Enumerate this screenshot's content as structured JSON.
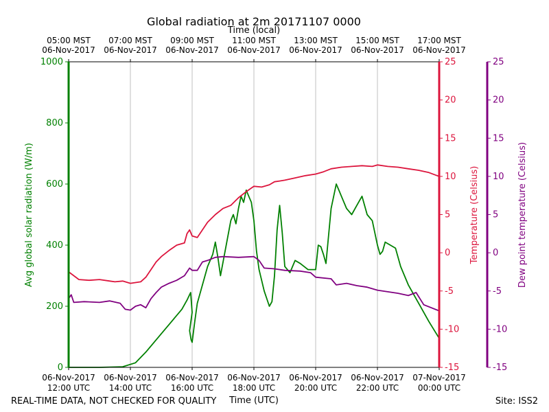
{
  "chart_data": {
    "type": "line",
    "title": "Global radiation at 2m 20171107 0000",
    "top_axis_label": "Time (local)",
    "top_ticks": [
      {
        "l1": "05:00 MST",
        "l2": "06-Nov-2017"
      },
      {
        "l1": "07:00 MST",
        "l2": "06-Nov-2017"
      },
      {
        "l1": "09:00 MST",
        "l2": "06-Nov-2017"
      },
      {
        "l1": "11:00 MST",
        "l2": "06-Nov-2017"
      },
      {
        "l1": "13:00 MST",
        "l2": "06-Nov-2017"
      },
      {
        "l1": "15:00 MST",
        "l2": "06-Nov-2017"
      },
      {
        "l1": "17:00 MST",
        "l2": "06-Nov-2017"
      }
    ],
    "xlabel": "Time (UTC)",
    "x_ticks": [
      {
        "l1": "06-Nov-2017",
        "l2": "12:00 UTC"
      },
      {
        "l1": "06-Nov-2017",
        "l2": "14:00 UTC"
      },
      {
        "l1": "06-Nov-2017",
        "l2": "16:00 UTC"
      },
      {
        "l1": "06-Nov-2017",
        "l2": "18:00 UTC"
      },
      {
        "l1": "06-Nov-2017",
        "l2": "20:00 UTC"
      },
      {
        "l1": "06-Nov-2017",
        "l2": "22:00 UTC"
      },
      {
        "l1": "07-Nov-2017",
        "l2": "00:00 UTC"
      }
    ],
    "xlim": [
      "06-Nov-2017 12:00 UTC",
      "07-Nov-2017 00:00 UTC"
    ],
    "grid": "vertical",
    "y_axes": [
      {
        "label": "Avg global solar radiation (W/m)",
        "color": "#008000",
        "ylim": [
          0,
          1000
        ],
        "ticks": [
          0,
          200,
          400,
          600,
          800,
          1000
        ]
      },
      {
        "label": "Temperature (Celsius)",
        "color": "#dc143c",
        "ylim": [
          -15,
          25
        ],
        "ticks": [
          -15,
          -10,
          -5,
          0,
          5,
          10,
          15,
          20,
          25
        ]
      },
      {
        "label": "Dew point temperature (Celsius)",
        "color": "#800080",
        "ylim": [
          -15,
          25
        ],
        "ticks": [
          -15,
          -10,
          -5,
          0,
          5,
          10,
          15,
          20,
          25
        ]
      }
    ],
    "series": [
      {
        "axis": 0,
        "color": "#008000",
        "points": [
          [
            "12:00",
            0
          ],
          [
            "13:00",
            0
          ],
          [
            "13:45",
            2
          ],
          [
            "14:10",
            15
          ],
          [
            "14:30",
            50
          ],
          [
            "15:00",
            110
          ],
          [
            "15:20",
            150
          ],
          [
            "15:40",
            190
          ],
          [
            "15:50",
            220
          ],
          [
            "15:57",
            245
          ],
          [
            "16:00",
            180
          ],
          [
            "15:55",
            120
          ],
          [
            "15:58",
            90
          ],
          [
            "16:00",
            82
          ],
          [
            "16:05",
            150
          ],
          [
            "16:10",
            210
          ],
          [
            "16:20",
            270
          ],
          [
            "16:30",
            330
          ],
          [
            "16:40",
            370
          ],
          [
            "16:45",
            410
          ],
          [
            "16:50",
            360
          ],
          [
            "16:55",
            300
          ],
          [
            "17:05",
            390
          ],
          [
            "17:15",
            480
          ],
          [
            "17:20",
            500
          ],
          [
            "17:25",
            470
          ],
          [
            "17:30",
            520
          ],
          [
            "17:35",
            560
          ],
          [
            "17:40",
            540
          ],
          [
            "17:45",
            580
          ],
          [
            "17:50",
            560
          ],
          [
            "17:55",
            540
          ],
          [
            "18:00",
            480
          ],
          [
            "18:05",
            380
          ],
          [
            "18:10",
            320
          ],
          [
            "18:20",
            250
          ],
          [
            "18:30",
            200
          ],
          [
            "18:35",
            215
          ],
          [
            "18:40",
            300
          ],
          [
            "18:45",
            450
          ],
          [
            "18:50",
            530
          ],
          [
            "18:55",
            440
          ],
          [
            "19:00",
            330
          ],
          [
            "19:10",
            310
          ],
          [
            "19:15",
            330
          ],
          [
            "19:20",
            350
          ],
          [
            "19:30",
            340
          ],
          [
            "19:45",
            320
          ],
          [
            "20:00",
            320
          ],
          [
            "20:05",
            400
          ],
          [
            "20:10",
            395
          ],
          [
            "20:15",
            370
          ],
          [
            "20:20",
            340
          ],
          [
            "20:30",
            520
          ],
          [
            "20:40",
            600
          ],
          [
            "20:45",
            580
          ],
          [
            "20:50",
            560
          ],
          [
            "21:00",
            520
          ],
          [
            "21:10",
            500
          ],
          [
            "21:20",
            530
          ],
          [
            "21:30",
            560
          ],
          [
            "21:40",
            500
          ],
          [
            "21:50",
            480
          ],
          [
            "22:00",
            400
          ],
          [
            "22:05",
            370
          ],
          [
            "22:10",
            380
          ],
          [
            "22:15",
            410
          ],
          [
            "22:25",
            400
          ],
          [
            "22:35",
            390
          ],
          [
            "22:45",
            330
          ],
          [
            "23:00",
            270
          ],
          [
            "23:20",
            210
          ],
          [
            "23:40",
            150
          ],
          [
            "24:00",
            95
          ]
        ]
      },
      {
        "axis": 1,
        "color": "#dc143c",
        "points": [
          [
            "12:00",
            -2.5
          ],
          [
            "12:10",
            -3.0
          ],
          [
            "12:20",
            -3.5
          ],
          [
            "12:40",
            -3.6
          ],
          [
            "13:00",
            -3.5
          ],
          [
            "13:20",
            -3.7
          ],
          [
            "13:30",
            -3.8
          ],
          [
            "13:45",
            -3.7
          ],
          [
            "14:00",
            -4.0
          ],
          [
            "14:10",
            -3.9
          ],
          [
            "14:20",
            -3.8
          ],
          [
            "14:30",
            -3.2
          ],
          [
            "14:40",
            -2.2
          ],
          [
            "14:50",
            -1.2
          ],
          [
            "15:00",
            -0.5
          ],
          [
            "15:15",
            0.3
          ],
          [
            "15:30",
            1.0
          ],
          [
            "15:45",
            1.3
          ],
          [
            "15:50",
            2.5
          ],
          [
            "15:55",
            3.0
          ],
          [
            "16:00",
            2.2
          ],
          [
            "16:10",
            2.0
          ],
          [
            "16:20",
            3.0
          ],
          [
            "16:30",
            4.0
          ],
          [
            "16:45",
            5.0
          ],
          [
            "17:00",
            5.8
          ],
          [
            "17:15",
            6.2
          ],
          [
            "17:30",
            7.2
          ],
          [
            "17:45",
            8.0
          ],
          [
            "18:00",
            8.7
          ],
          [
            "18:15",
            8.6
          ],
          [
            "18:30",
            8.9
          ],
          [
            "18:40",
            9.3
          ],
          [
            "18:50",
            9.4
          ],
          [
            "19:00",
            9.5
          ],
          [
            "19:20",
            9.8
          ],
          [
            "19:40",
            10.1
          ],
          [
            "20:00",
            10.3
          ],
          [
            "20:15",
            10.6
          ],
          [
            "20:30",
            11.0
          ],
          [
            "20:50",
            11.2
          ],
          [
            "21:10",
            11.3
          ],
          [
            "21:30",
            11.4
          ],
          [
            "21:50",
            11.3
          ],
          [
            "22:00",
            11.5
          ],
          [
            "22:20",
            11.3
          ],
          [
            "22:40",
            11.2
          ],
          [
            "23:00",
            11.0
          ],
          [
            "23:20",
            10.8
          ],
          [
            "23:40",
            10.5
          ],
          [
            "24:00",
            10.0
          ]
        ]
      },
      {
        "axis": 2,
        "color": "#800080",
        "points": [
          [
            "12:00",
            -6.0
          ],
          [
            "12:05",
            -5.5
          ],
          [
            "12:10",
            -6.5
          ],
          [
            "12:30",
            -6.4
          ],
          [
            "13:00",
            -6.5
          ],
          [
            "13:20",
            -6.3
          ],
          [
            "13:40",
            -6.6
          ],
          [
            "13:50",
            -7.4
          ],
          [
            "14:00",
            -7.5
          ],
          [
            "14:10",
            -7.0
          ],
          [
            "14:20",
            -6.8
          ],
          [
            "14:30",
            -7.2
          ],
          [
            "14:40",
            -6.0
          ],
          [
            "14:50",
            -5.2
          ],
          [
            "15:00",
            -4.5
          ],
          [
            "15:15",
            -4.0
          ],
          [
            "15:30",
            -3.6
          ],
          [
            "15:45",
            -3.0
          ],
          [
            "15:55",
            -2.0
          ],
          [
            "16:00",
            -2.3
          ],
          [
            "16:10",
            -2.3
          ],
          [
            "16:20",
            -1.2
          ],
          [
            "16:30",
            -1.0
          ],
          [
            "16:45",
            -0.6
          ],
          [
            "17:00",
            -0.5
          ],
          [
            "17:30",
            -0.6
          ],
          [
            "18:00",
            -0.5
          ],
          [
            "18:10",
            -1.0
          ],
          [
            "18:20",
            -2.0
          ],
          [
            "18:40",
            -2.1
          ],
          [
            "19:00",
            -2.3
          ],
          [
            "19:30",
            -2.4
          ],
          [
            "19:50",
            -2.6
          ],
          [
            "20:00",
            -3.2
          ],
          [
            "20:30",
            -3.4
          ],
          [
            "20:40",
            -4.2
          ],
          [
            "21:00",
            -4.0
          ],
          [
            "21:20",
            -4.3
          ],
          [
            "21:40",
            -4.5
          ],
          [
            "22:00",
            -4.9
          ],
          [
            "22:20",
            -5.1
          ],
          [
            "22:40",
            -5.3
          ],
          [
            "23:00",
            -5.6
          ],
          [
            "23:15",
            -5.2
          ],
          [
            "23:30",
            -6.8
          ],
          [
            "24:00",
            -7.6
          ]
        ]
      }
    ],
    "footer_left": "REAL-TIME DATA, NOT CHECKED FOR QUALITY",
    "footer_right": "Site: ISS2"
  }
}
